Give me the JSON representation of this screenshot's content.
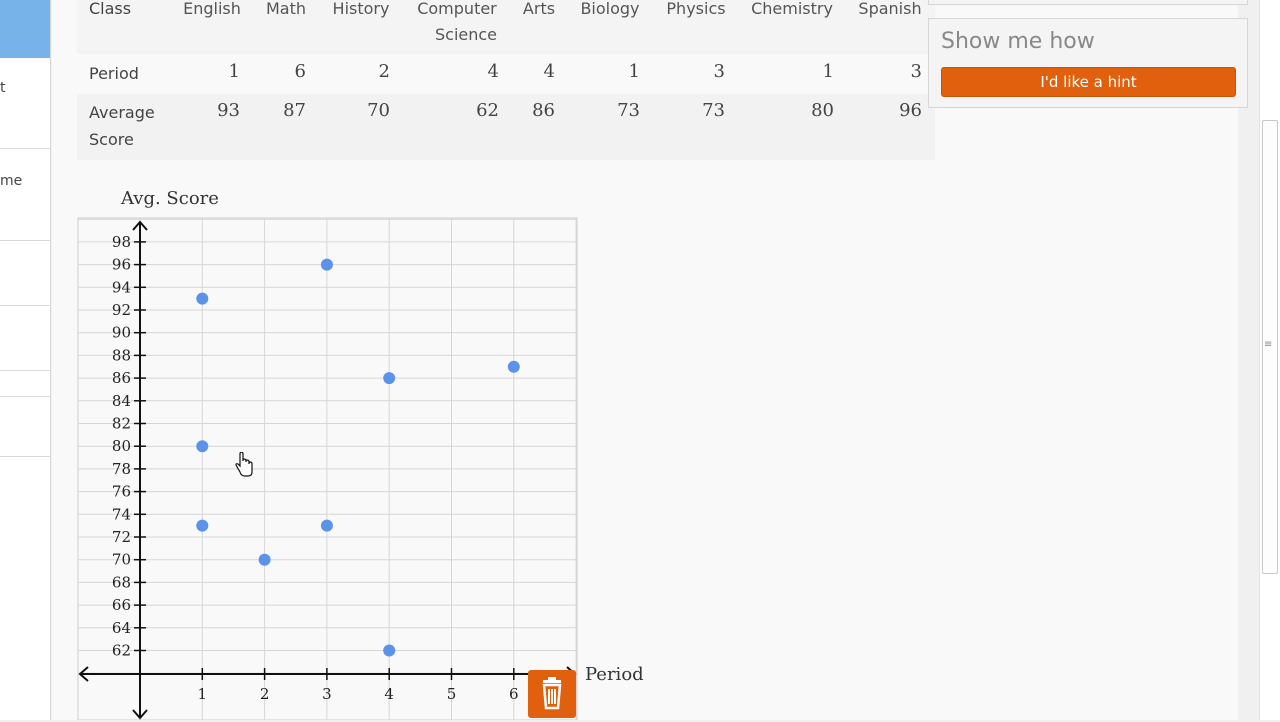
{
  "sidebar": {
    "fragments": [
      "t",
      "me"
    ]
  },
  "table": {
    "class_label": "Class",
    "period_label": "Period",
    "score_label_line1": "Average",
    "score_label_line2": "Score",
    "columns": [
      {
        "name": "English",
        "period": "1",
        "score": "93"
      },
      {
        "name": "Math",
        "period": "6",
        "score": "87"
      },
      {
        "name": "History",
        "period": "2",
        "score": "70"
      },
      {
        "name": "Computer",
        "name2": "Science",
        "period": "4",
        "score": "62"
      },
      {
        "name": "Arts",
        "period": "4",
        "score": "86"
      },
      {
        "name": "Biology",
        "period": "1",
        "score": "73"
      },
      {
        "name": "Physics",
        "period": "3",
        "score": "73"
      },
      {
        "name": "Chemistry",
        "period": "1",
        "score": "80"
      },
      {
        "name": "Spanish",
        "period": "3",
        "score": "96"
      }
    ]
  },
  "hint": {
    "title": "Show me how",
    "button_label": "I'd like a hint",
    "accent": "#e0600d"
  },
  "chart_data": {
    "type": "scatter",
    "ylabel": "Avg. Score",
    "xlabel": "Period",
    "x_ticks": [
      1,
      2,
      3,
      4,
      5,
      6
    ],
    "y_ticks": [
      62,
      64,
      66,
      68,
      70,
      72,
      74,
      76,
      78,
      80,
      82,
      84,
      86,
      88,
      90,
      92,
      94,
      96,
      98
    ],
    "points": [
      {
        "x": 1,
        "y": 93
      },
      {
        "x": 6,
        "y": 87
      },
      {
        "x": 2,
        "y": 70
      },
      {
        "x": 4,
        "y": 62
      },
      {
        "x": 4,
        "y": 86
      },
      {
        "x": 1,
        "y": 73
      },
      {
        "x": 3,
        "y": 73
      },
      {
        "x": 1,
        "y": 80
      },
      {
        "x": 3,
        "y": 96
      }
    ],
    "point_color": "#5b93e8",
    "grid": true
  },
  "icons": {
    "trash": "trash-icon"
  }
}
